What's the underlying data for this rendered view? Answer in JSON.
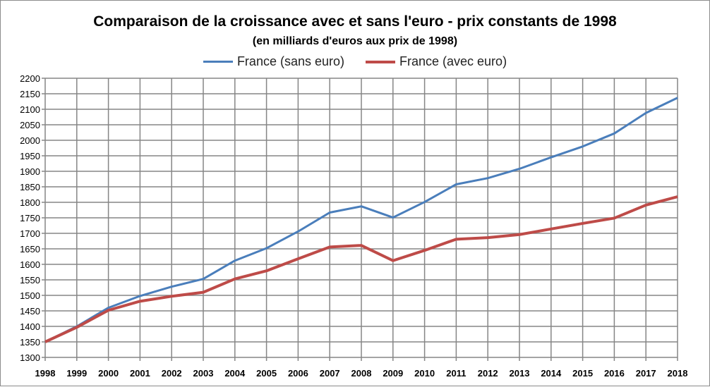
{
  "chart_data": {
    "type": "line",
    "title": "Comparaison  de la croissance avec et sans l'euro - prix constants de 1998",
    "subtitle": "(en milliards d'euros aux prix de 1998)",
    "xlabel": "",
    "ylabel": "",
    "x": [
      "1998",
      "1999",
      "2000",
      "2001",
      "2002",
      "2003",
      "2004",
      "2005",
      "2006",
      "2007",
      "2008",
      "2009",
      "2010",
      "2011",
      "2012",
      "2013",
      "2014",
      "2015",
      "2016",
      "2017",
      "2018"
    ],
    "ylim": [
      1300,
      2200
    ],
    "yticks": [
      1300,
      1350,
      1400,
      1450,
      1500,
      1550,
      1600,
      1650,
      1700,
      1750,
      1800,
      1850,
      1900,
      1950,
      2000,
      2050,
      2100,
      2150,
      2200
    ],
    "grid": true,
    "legend_position": "top-center",
    "series": [
      {
        "name": "France (sans euro)",
        "color": "#4a7ebb",
        "values": [
          1350,
          1400,
          1460,
          1498,
          1528,
          1553,
          1612,
          1652,
          1706,
          1767,
          1787,
          1751,
          1801,
          1858,
          1878,
          1908,
          1945,
          1980,
          2022,
          2088,
          2137
        ]
      },
      {
        "name": "France (avec euro)",
        "color": "#be4b48",
        "values": [
          1350,
          1397,
          1452,
          1481,
          1497,
          1510,
          1553,
          1579,
          1618,
          1656,
          1661,
          1612,
          1645,
          1681,
          1686,
          1696,
          1714,
          1732,
          1749,
          1791,
          1818
        ]
      }
    ]
  }
}
